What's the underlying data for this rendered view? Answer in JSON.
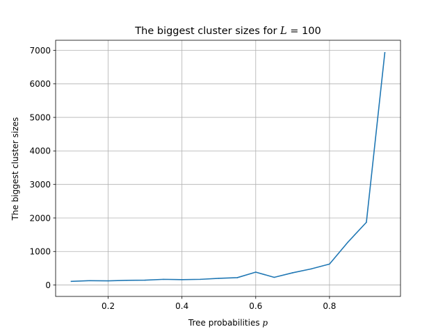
{
  "chart_data": {
    "type": "line",
    "title": "The biggest cluster sizes for L = 100",
    "title_parts": {
      "prefix": "The biggest cluster sizes for ",
      "var": "L",
      "suffix": " = 100"
    },
    "xlabel": "Tree probabilities p",
    "xlabel_parts": {
      "prefix": "Tree probabilities ",
      "var": "p"
    },
    "ylabel": "The biggest cluster sizes",
    "xlim": [
      0.0575,
      0.9925
    ],
    "ylim": [
      -340,
      7300
    ],
    "x_ticks": [
      {
        "value": 0.2,
        "label": "0.2"
      },
      {
        "value": 0.4,
        "label": "0.4"
      },
      {
        "value": 0.6,
        "label": "0.6"
      },
      {
        "value": 0.8,
        "label": "0.8"
      }
    ],
    "y_ticks": [
      {
        "value": 0,
        "label": "0"
      },
      {
        "value": 1000,
        "label": "1000"
      },
      {
        "value": 2000,
        "label": "2000"
      },
      {
        "value": 3000,
        "label": "3000"
      },
      {
        "value": 4000,
        "label": "4000"
      },
      {
        "value": 5000,
        "label": "5000"
      },
      {
        "value": 6000,
        "label": "6000"
      },
      {
        "value": 7000,
        "label": "7000"
      }
    ],
    "grid": true,
    "series": [
      {
        "color": "#1f77b4",
        "x": [
          0.1,
          0.15,
          0.2,
          0.25,
          0.3,
          0.35,
          0.4,
          0.45,
          0.5,
          0.55,
          0.6,
          0.65,
          0.7,
          0.75,
          0.8,
          0.85,
          0.9,
          0.95
        ],
        "y": [
          110,
          130,
          125,
          140,
          145,
          170,
          160,
          170,
          200,
          220,
          385,
          230,
          365,
          480,
          625,
          1280,
          1870,
          6930
        ]
      }
    ]
  }
}
